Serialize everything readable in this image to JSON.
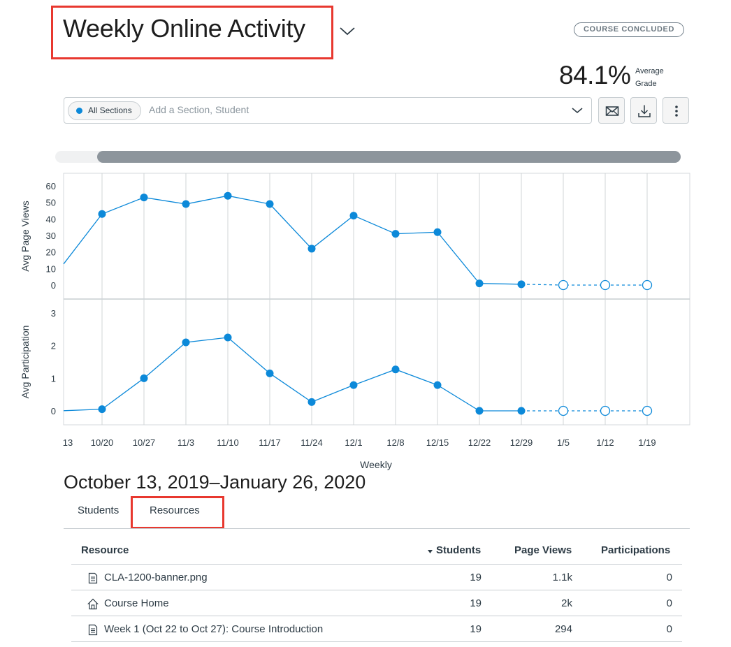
{
  "header": {
    "title": "Weekly Online Activity",
    "status_badge": "COURSE CONCLUDED",
    "grade_value": "84.1%",
    "grade_label_line1": "Average",
    "grade_label_line2": "Grade"
  },
  "filter": {
    "pill_label": "All Sections",
    "placeholder": "Add a Section, Student"
  },
  "colors": {
    "accent": "#0c89d9",
    "highlight_box": "#e8382f"
  },
  "icons": [
    "chevron-down-icon",
    "envelope-icon",
    "download-icon",
    "more-vertical-icon",
    "document-icon",
    "home-icon",
    "sort-down-icon"
  ],
  "chart_data": [
    {
      "type": "line",
      "ylabel": "Avg Page Views",
      "y_ticks": [
        "0",
        "10",
        "20",
        "30",
        "40",
        "50",
        "60"
      ],
      "ylim": [
        0,
        60
      ],
      "x": [
        "13",
        "10/20",
        "10/27",
        "11/3",
        "11/10",
        "11/17",
        "11/24",
        "12/1",
        "12/8",
        "12/15",
        "12/22",
        "12/29",
        "1/5",
        "1/12",
        "1/19"
      ],
      "values": [
        10,
        43,
        53,
        49,
        54,
        49,
        22,
        42,
        31,
        32,
        1,
        0.5,
        0,
        0,
        0
      ],
      "future_from_index": 12
    },
    {
      "type": "line",
      "ylabel": "Avg Participation",
      "y_ticks": [
        "0",
        "1",
        "2",
        "3"
      ],
      "ylim": [
        0,
        3
      ],
      "x": [
        "13",
        "10/20",
        "10/27",
        "11/3",
        "11/10",
        "11/17",
        "11/24",
        "12/1",
        "12/8",
        "12/15",
        "12/22",
        "12/29",
        "1/5",
        "1/12",
        "1/19"
      ],
      "values": [
        0,
        0.05,
        1,
        2.1,
        2.25,
        1.15,
        0.27,
        0.79,
        1.27,
        0.79,
        0,
        0,
        0,
        0,
        0
      ],
      "future_from_index": 12
    }
  ],
  "chart_xlabel": "Weekly",
  "date_range": "October 13, 2019–January 26, 2020",
  "tabs": [
    {
      "label": "Students"
    },
    {
      "label": "Resources"
    }
  ],
  "table": {
    "columns": {
      "resource": "Resource",
      "students": "Students",
      "page_views": "Page Views",
      "participations": "Participations"
    },
    "rows": [
      {
        "icon": "document-icon",
        "name": "CLA-1200-banner.png",
        "students": "19",
        "page_views": "1.1k",
        "participations": "0"
      },
      {
        "icon": "home-icon",
        "name": "Course Home",
        "students": "19",
        "page_views": "2k",
        "participations": "0"
      },
      {
        "icon": "document-icon",
        "name": "Week 1 (Oct 22 to Oct 27): Course Introduction",
        "students": "19",
        "page_views": "294",
        "participations": "0"
      }
    ]
  }
}
